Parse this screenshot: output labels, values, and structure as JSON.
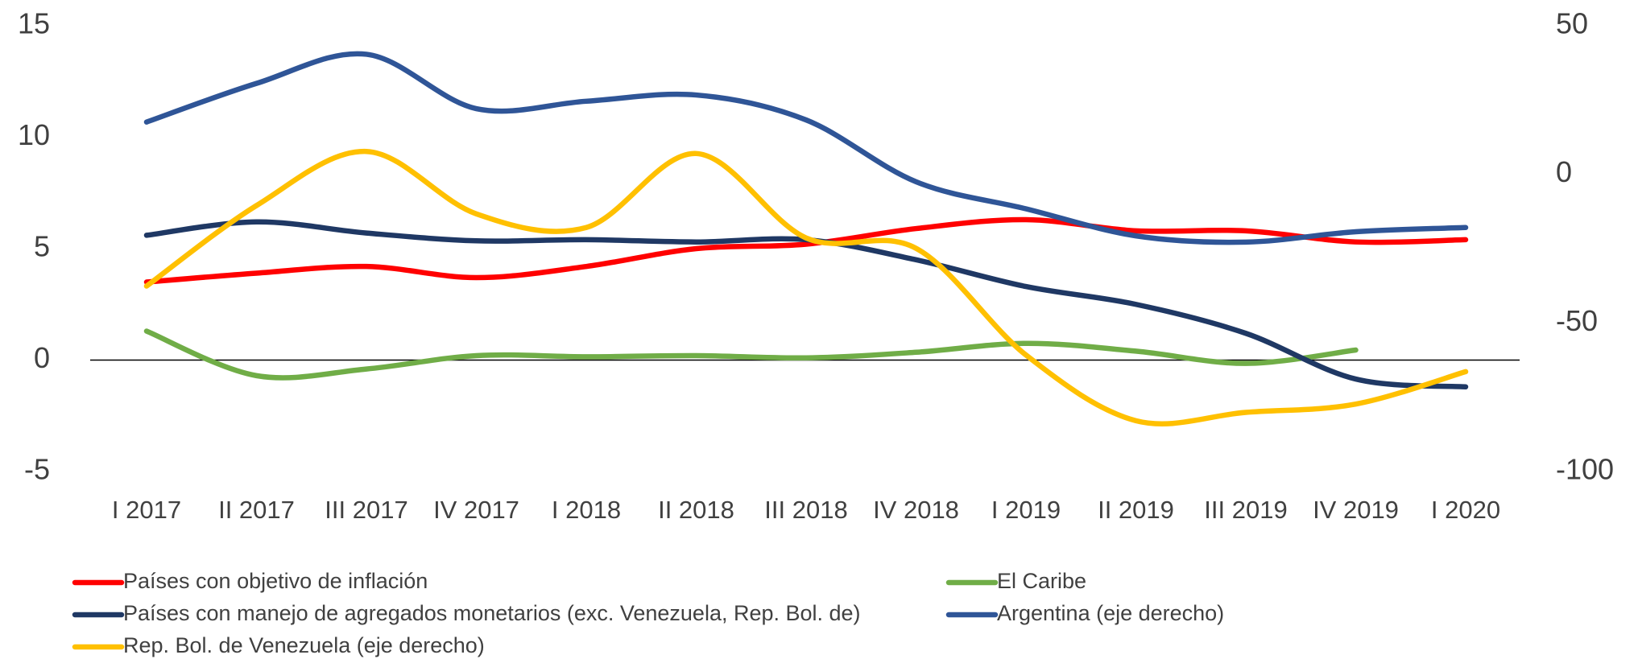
{
  "chart_data": {
    "type": "line",
    "categories": [
      "I 2017",
      "II 2017",
      "III 2017",
      "IV 2017",
      "I 2018",
      "II 2018",
      "III 2018",
      "IV 2018",
      "I 2019",
      "II 2019",
      "III 2019",
      "IV 2019",
      "I 2020"
    ],
    "ylim": [
      -5,
      15
    ],
    "yticks": [
      -5,
      0,
      5,
      10,
      15
    ],
    "y2lim": [
      -100,
      50
    ],
    "y2ticks": [
      -100,
      -50,
      0,
      50
    ],
    "series": [
      {
        "name": "Países con objetivo de inflación",
        "color": "#ff0000",
        "values": [
          3.5,
          3.9,
          4.2,
          3.7,
          4.2,
          5.0,
          5.2,
          5.9,
          6.3,
          5.8,
          5.8,
          5.3,
          5.4
        ]
      },
      {
        "name": "El Caribe",
        "color": "#70ad47",
        "values": [
          1.3,
          -0.7,
          -0.4,
          0.2,
          0.15,
          0.2,
          0.1,
          0.35,
          0.75,
          0.4,
          -0.15,
          0.45,
          null
        ]
      },
      {
        "name": "Países con manejo de agregados monetarios (exc. Venezuela, Rep. Bol. de)",
        "color": "#1f3864",
        "values": [
          5.6,
          6.2,
          5.7,
          5.35,
          5.4,
          5.3,
          5.4,
          4.5,
          3.3,
          2.5,
          1.2,
          -0.85,
          -1.2
        ]
      },
      {
        "name": "Argentina (eje derecho)",
        "color": "#2f5597",
        "axis": "y2",
        "values": [
          17.6,
          30.6,
          40.4,
          22.1,
          24.6,
          26.7,
          18.3,
          -2.5,
          -11.6,
          -20.7,
          -22.8,
          -19.3,
          -17.9
        ]
      },
      {
        "name": "Rep. Bol. de Venezuela  (eje derecho)",
        "color": "#ffc000",
        "axis": "y2",
        "values": [
          -37.6,
          -10.5,
          7.7,
          -13.3,
          -17.9,
          7.0,
          -21.4,
          -24.9,
          -60.8,
          -82.9,
          -80.1,
          -77.3,
          -66.4
        ]
      }
    ]
  }
}
